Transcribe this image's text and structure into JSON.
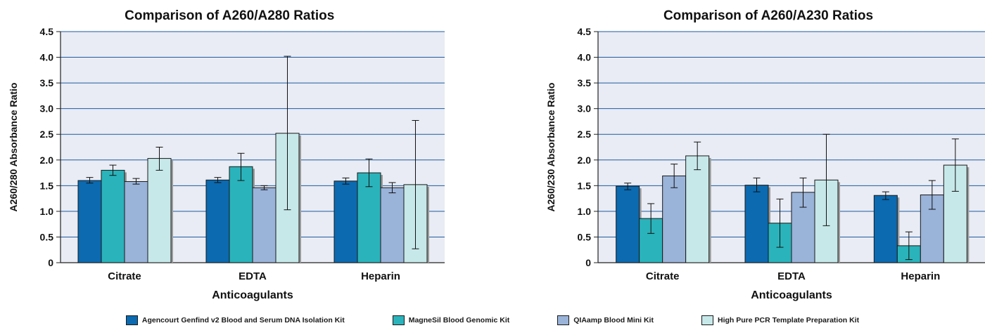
{
  "colors": {
    "series": [
      "#0b6ab0",
      "#2ab3ba",
      "#9ab3d9",
      "#c7e8e9"
    ],
    "plot_bg": "#e9ecf4",
    "grid": "#1f5aa0"
  },
  "legend": {
    "items": [
      "Agencourt Genfind v2 Blood and Serum DNA Isolation Kit",
      "MagneSil Blood Genomic Kit",
      "QIAamp Blood Mini Kit",
      "High Pure PCR Template Preparation Kit"
    ]
  },
  "chart_data": [
    {
      "type": "bar",
      "title": "Comparison of A260/A280 Ratios",
      "xlabel": "Anticoagulants",
      "ylabel": "A260/280 Absorbance Ratio",
      "ylim": [
        0,
        4.5
      ],
      "yticks": [
        "0",
        "0.5",
        "1.0",
        "1.5",
        "2.0",
        "2.5",
        "3.0",
        "3.5",
        "4.0",
        "4.5"
      ],
      "grid": true,
      "categories": [
        "Citrate",
        "EDTA",
        "Heparin"
      ],
      "series": [
        {
          "name": "Agencourt Genfind v2 Blood and Serum DNA Isolation Kit",
          "values": [
            1.6,
            1.61,
            1.59
          ],
          "err_low": [
            1.55,
            1.56,
            1.53
          ],
          "err_high": [
            1.66,
            1.66,
            1.65
          ]
        },
        {
          "name": "MagneSil Blood Genomic Kit",
          "values": [
            1.8,
            1.87,
            1.75
          ],
          "err_low": [
            1.7,
            1.6,
            1.48
          ],
          "err_high": [
            1.9,
            2.13,
            2.02
          ]
        },
        {
          "name": "QIAamp Blood Mini Kit",
          "values": [
            1.58,
            1.46,
            1.46
          ],
          "err_low": [
            1.53,
            1.42,
            1.36
          ],
          "err_high": [
            1.64,
            1.5,
            1.56
          ]
        },
        {
          "name": "High Pure PCR Template Preparation Kit",
          "values": [
            2.03,
            2.52,
            1.52
          ],
          "err_low": [
            1.8,
            1.03,
            0.27
          ],
          "err_high": [
            2.25,
            4.02,
            2.77
          ]
        }
      ]
    },
    {
      "type": "bar",
      "title": "Comparison of A260/A230 Ratios",
      "xlabel": "Anticoagulants",
      "ylabel": "A260/230 Absorbance Ratio",
      "ylim": [
        0,
        4.5
      ],
      "yticks": [
        "0",
        "0.5",
        "1.0",
        "1.5",
        "2.0",
        "2.5",
        "3.0",
        "3.5",
        "4.0",
        "4.5"
      ],
      "grid": true,
      "categories": [
        "Citrate",
        "EDTA",
        "Heparin"
      ],
      "series": [
        {
          "name": "Agencourt Genfind v2 Blood and Serum DNA Isolation Kit",
          "values": [
            1.49,
            1.51,
            1.31
          ],
          "err_low": [
            1.42,
            1.38,
            1.23
          ],
          "err_high": [
            1.55,
            1.65,
            1.38
          ]
        },
        {
          "name": "MagneSil Blood Genomic Kit",
          "values": [
            0.86,
            0.77,
            0.33
          ],
          "err_low": [
            0.57,
            0.3,
            0.06
          ],
          "err_high": [
            1.15,
            1.24,
            0.6
          ]
        },
        {
          "name": "QIAamp Blood Mini Kit",
          "values": [
            1.69,
            1.37,
            1.32
          ],
          "err_low": [
            1.46,
            1.08,
            1.04
          ],
          "err_high": [
            1.92,
            1.65,
            1.6
          ]
        },
        {
          "name": "High Pure PCR Template Preparation Kit",
          "values": [
            2.08,
            1.61,
            1.9
          ],
          "err_low": [
            1.81,
            0.72,
            1.39
          ],
          "err_high": [
            2.35,
            2.5,
            2.41
          ]
        }
      ]
    }
  ]
}
